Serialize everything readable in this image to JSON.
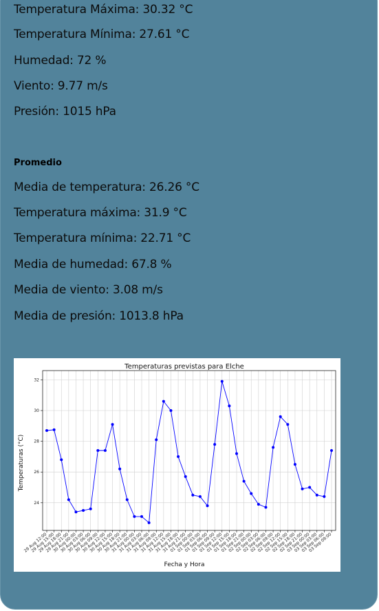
{
  "current": {
    "temp_max": "Temperatura Máxima: 30.32 °C",
    "temp_min": "Temperatura Mínima: 27.61 °C",
    "humidity": "Humedad: 72 %",
    "wind": "Viento: 9.77 m/s",
    "pressure": "Presión: 1015 hPa"
  },
  "average": {
    "heading": "Promedio",
    "mean_temp": "Media de temperatura: 26.26 °C",
    "max_temp": "Temperatura máxima: 31.9 °C",
    "min_temp": "Temperatura mínima: 22.71 °C",
    "mean_humidity": "Media de humedad: 67.8 %",
    "mean_wind": "Media de viento: 3.08 m/s",
    "mean_pressure": "Media de presión: 1013.8 hPa"
  },
  "colors": {
    "card": "#52839b",
    "line": "#0000ff"
  },
  "chart_data": {
    "type": "line",
    "title": "Temperaturas previstas para Elche",
    "xlabel": "Fecha y Hora",
    "ylabel": "Temperaturas (°C)",
    "ylim": [
      22.2,
      32.6
    ],
    "yticks": [
      24,
      26,
      28,
      30,
      32
    ],
    "grid": true,
    "categories": [
      "29 Aug 12:00",
      "29 Aug 15:00",
      "29 Aug 18:00",
      "29 Aug 21:00",
      "30 Aug 00:00",
      "30 Aug 03:00",
      "30 Aug 06:00",
      "30 Aug 09:00",
      "30 Aug 12:00",
      "30 Aug 15:00",
      "30 Aug 18:00",
      "30 Aug 21:00",
      "31 Aug 00:00",
      "31 Aug 03:00",
      "31 Aug 06:00",
      "31 Aug 09:00",
      "31 Aug 12:00",
      "31 Aug 15:00",
      "31 Aug 18:00",
      "31 Aug 21:00",
      "01 Sep 00:00",
      "01 Sep 03:00",
      "01 Sep 06:00",
      "01 Sep 09:00",
      "01 Sep 12:00",
      "01 Sep 15:00",
      "01 Sep 18:00",
      "01 Sep 21:00",
      "02 Sep 00:00",
      "02 Sep 03:00",
      "02 Sep 06:00",
      "02 Sep 09:00",
      "02 Sep 12:00",
      "02 Sep 15:00",
      "02 Sep 18:00",
      "02 Sep 21:00",
      "03 Sep 00:00",
      "03 Sep 03:00",
      "03 Sep 06:00",
      "03 Sep 09:00"
    ],
    "series": [
      {
        "values": [
          28.7,
          28.75,
          26.8,
          24.2,
          23.4,
          23.5,
          23.6,
          27.4,
          27.4,
          29.1,
          26.2,
          24.2,
          23.1,
          23.1,
          22.7,
          28.1,
          30.6,
          30.0,
          27.0,
          25.7,
          24.5,
          24.4,
          23.8,
          27.8,
          31.9,
          30.3,
          27.2,
          25.4,
          24.6,
          23.9,
          23.7,
          27.6,
          29.6,
          29.1,
          26.5,
          24.9,
          25.0,
          24.5,
          24.4,
          27.4
        ]
      }
    ]
  }
}
